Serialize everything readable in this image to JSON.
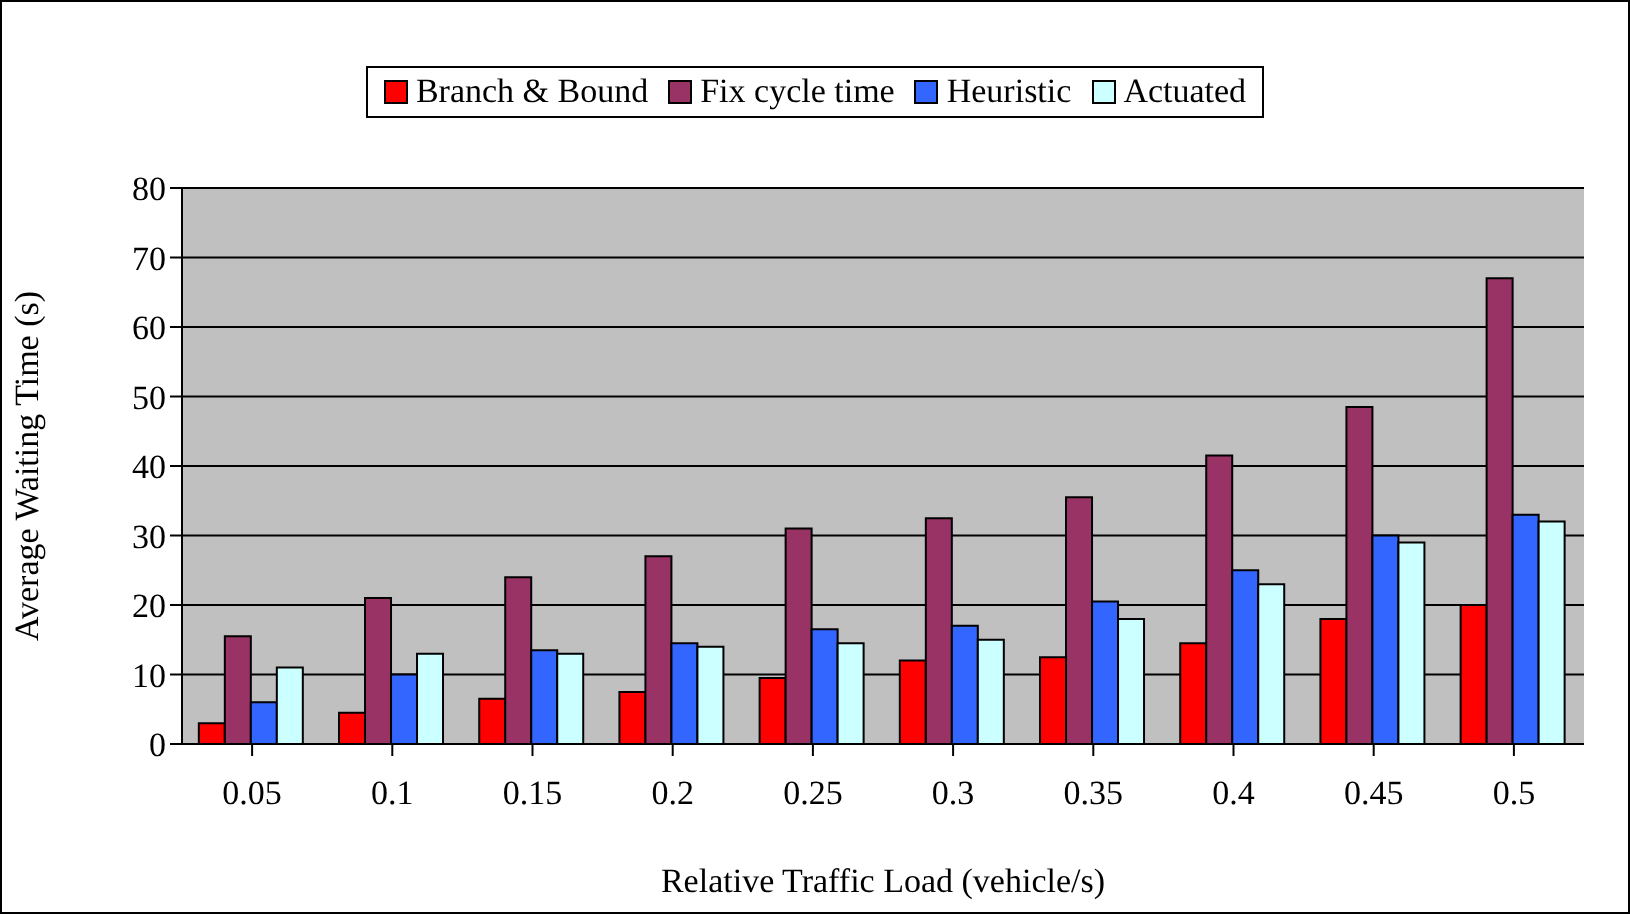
{
  "chart_data": {
    "type": "bar",
    "xlabel": "Relative Traffic Load (vehicle/s)",
    "ylabel": "Average Waiting Time (s)",
    "categories": [
      "0.05",
      "0.1",
      "0.15",
      "0.2",
      "0.25",
      "0.3",
      "0.35",
      "0.4",
      "0.45",
      "0.5"
    ],
    "series": [
      {
        "name": "Branch & Bound",
        "color": "#ff0000",
        "values": [
          3,
          4.5,
          6.5,
          7.5,
          9.5,
          12,
          12.5,
          14.5,
          18,
          20
        ]
      },
      {
        "name": "Fix cycle time",
        "color": "#993366",
        "values": [
          15.5,
          21,
          24,
          27,
          31,
          32.5,
          35.5,
          41.5,
          48.5,
          67
        ]
      },
      {
        "name": "Heuristic",
        "color": "#3366ff",
        "values": [
          6,
          10,
          13.5,
          14.5,
          16.5,
          17,
          20.5,
          25,
          30,
          33
        ]
      },
      {
        "name": "Actuated",
        "color": "#ccffff",
        "values": [
          11,
          13,
          13,
          14,
          14.5,
          15,
          18,
          23,
          29,
          32
        ]
      }
    ],
    "ylim": [
      0,
      80
    ],
    "yticks": [
      0,
      10,
      20,
      30,
      40,
      50,
      60,
      70,
      80
    ],
    "grid": "y",
    "legend": "top"
  }
}
